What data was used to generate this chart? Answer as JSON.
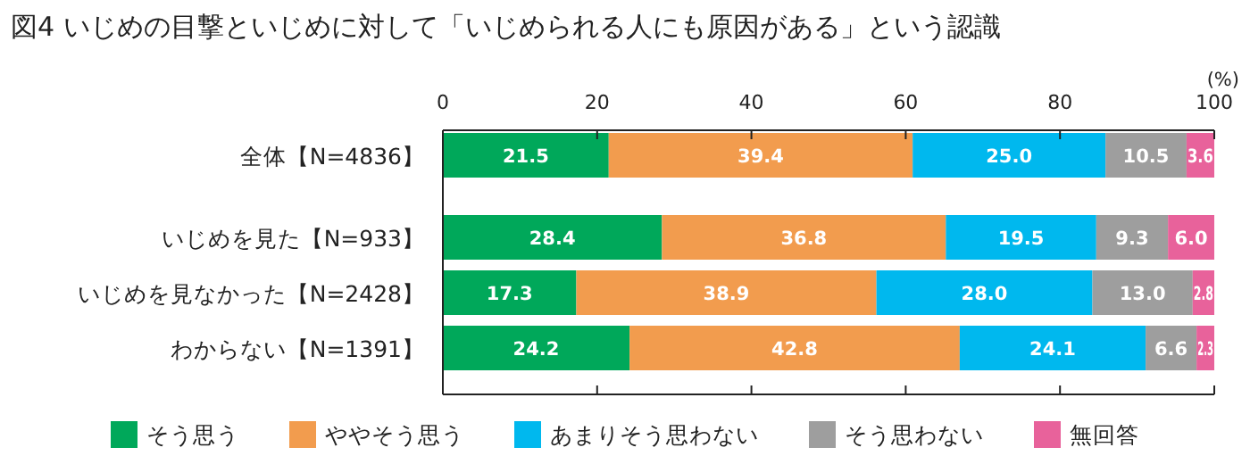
{
  "chart_data": {
    "type": "bar",
    "orientation": "horizontal",
    "stacked": true,
    "title": "図4 いじめの目撃といじめに対して「いじめられる人にも原因がある」という認識",
    "xlabel": "(%)",
    "categories": [
      "全体【N=4836】",
      "いじめを見た【N=933】",
      "いじめを見なかった【N=2428】",
      "わからない【N=1391】"
    ],
    "series": [
      {
        "name": "そう思う",
        "color": "#00a85a",
        "values": [
          21.5,
          28.4,
          17.3,
          24.2
        ],
        "value_labels": [
          "21.5",
          "28.4",
          "17.3",
          "24.2"
        ]
      },
      {
        "name": "ややそう思う",
        "color": "#f29c4e",
        "values": [
          39.4,
          36.8,
          38.9,
          42.8
        ],
        "value_labels": [
          "39.4",
          "36.8",
          "38.9",
          "42.8"
        ]
      },
      {
        "name": "あまりそう思わない",
        "color": "#00b8ee",
        "values": [
          25.0,
          19.5,
          28.0,
          24.1
        ],
        "value_labels": [
          "25.0",
          "19.5",
          "28.0",
          "24.1"
        ]
      },
      {
        "name": "そう思わない",
        "color": "#9e9e9e",
        "values": [
          10.5,
          9.3,
          13.0,
          6.6
        ],
        "value_labels": [
          "10.5",
          "9.3",
          "13.0",
          "6.6"
        ]
      },
      {
        "name": "無回答",
        "color": "#e8629b",
        "values": [
          3.6,
          6.0,
          2.8,
          2.3
        ],
        "value_labels": [
          "3.6",
          "6.0",
          "2.8",
          "2.3"
        ]
      }
    ],
    "xlim": [
      0,
      100
    ],
    "xticks": [
      0,
      20,
      40,
      60,
      80,
      100
    ],
    "legend": "bottom",
    "grid": false
  }
}
